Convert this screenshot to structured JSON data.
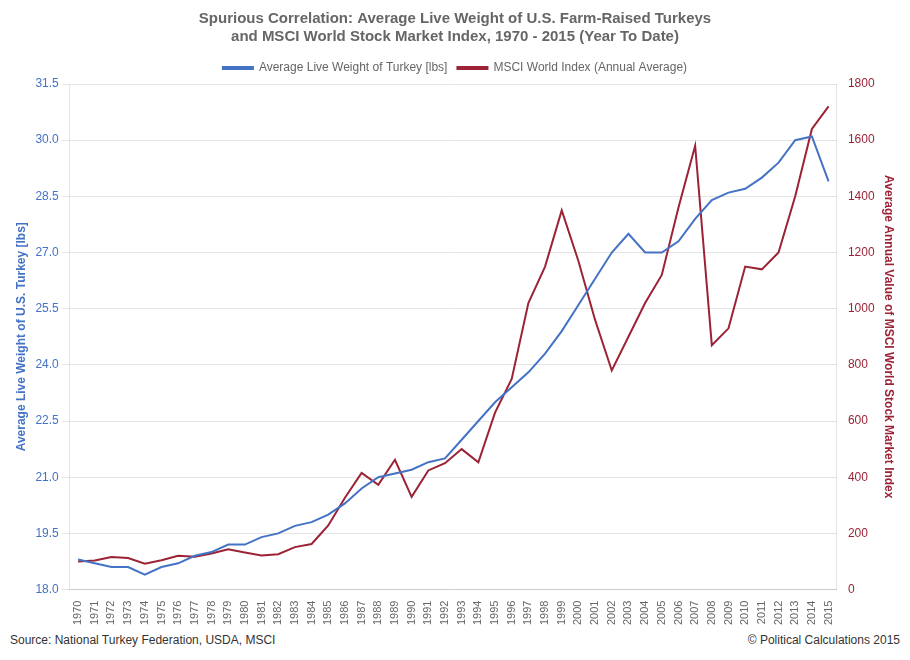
{
  "chart_data": {
    "type": "line",
    "title": [
      "Spurious Correlation: Average Live Weight of U.S. Farm-Raised Turkeys",
      "and MSCI World Stock Market Index, 1970 - 2015 (Year To Date)"
    ],
    "ylabel": "Average Live Weight of U.S. Turkey [lbs]",
    "y2label": "Average Annual Value of MSCI World Stock Market Index",
    "annotations": [
      "Source: National Turkey Federation,  USDA, MSCI",
      "© Political Calculations 2015"
    ],
    "x": [
      1970,
      1971,
      1972,
      1973,
      1974,
      1975,
      1976,
      1977,
      1978,
      1979,
      1980,
      1981,
      1982,
      1983,
      1984,
      1985,
      1986,
      1987,
      1988,
      1989,
      1990,
      1991,
      1992,
      1993,
      1994,
      1995,
      1996,
      1997,
      1998,
      1999,
      2000,
      2001,
      2002,
      2003,
      2004,
      2005,
      2006,
      2007,
      2008,
      2009,
      2010,
      2011,
      2012,
      2013,
      2014,
      2015
    ],
    "series": [
      {
        "name": "Average Live Weight of Turkey [lbs]",
        "color": "#4472c4",
        "axis": "y",
        "values": [
          18.8,
          18.7,
          18.6,
          18.6,
          18.4,
          18.6,
          18.7,
          18.9,
          19.0,
          19.2,
          19.2,
          19.4,
          19.5,
          19.7,
          19.8,
          20.0,
          20.3,
          20.7,
          21.0,
          21.1,
          21.2,
          21.4,
          21.5,
          22.0,
          22.5,
          23.0,
          23.4,
          23.8,
          24.3,
          24.9,
          25.6,
          26.3,
          27.0,
          27.5,
          27.0,
          27.0,
          27.3,
          27.9,
          28.4,
          28.6,
          28.7,
          29.0,
          29.4,
          30.0,
          30.1,
          28.9
        ]
      },
      {
        "name": "MSCI World Index (Annual Average)",
        "color": "#9b2335",
        "axis": "y2",
        "values": [
          100,
          103,
          116,
          112,
          92,
          104,
          120,
          117,
          128,
          143,
          132,
          121,
          126,
          151,
          162,
          228,
          327,
          415,
          373,
          462,
          330,
          424,
          450,
          500,
          453,
          630,
          750,
          1020,
          1150,
          1350,
          1170,
          960,
          780,
          900,
          1020,
          1120,
          1360,
          1580,
          870,
          930,
          1150,
          1140,
          1200,
          1400,
          1640,
          1720
        ]
      }
    ],
    "xlim": [
      1969.5,
      2015.5
    ],
    "xticks": [
      1970,
      1971,
      1972,
      1973,
      1974,
      1975,
      1976,
      1977,
      1978,
      1979,
      1980,
      1981,
      1982,
      1983,
      1984,
      1985,
      1986,
      1987,
      1988,
      1989,
      1990,
      1991,
      1992,
      1993,
      1994,
      1995,
      1996,
      1997,
      1998,
      1999,
      2000,
      2001,
      2002,
      2003,
      2004,
      2005,
      2006,
      2007,
      2008,
      2009,
      2010,
      2011,
      2012,
      2013,
      2014,
      2015
    ],
    "ylim": [
      18.0,
      31.5
    ],
    "yticks": [
      {
        "value": 18,
        "label": "18.0"
      },
      19.5,
      {
        "value": 21,
        "label": "21.0"
      },
      22.5,
      {
        "value": 24,
        "label": "24.0"
      },
      25.5,
      {
        "value": 27,
        "label": "27.0"
      },
      28.5,
      {
        "value": 30,
        "label": "30.0"
      },
      31.5
    ],
    "y2lim": [
      0,
      1800
    ],
    "y2ticks": [
      0,
      200,
      400,
      600,
      800,
      1000,
      1200,
      1400,
      1600,
      1800
    ],
    "grid": "y",
    "legend": "top"
  }
}
